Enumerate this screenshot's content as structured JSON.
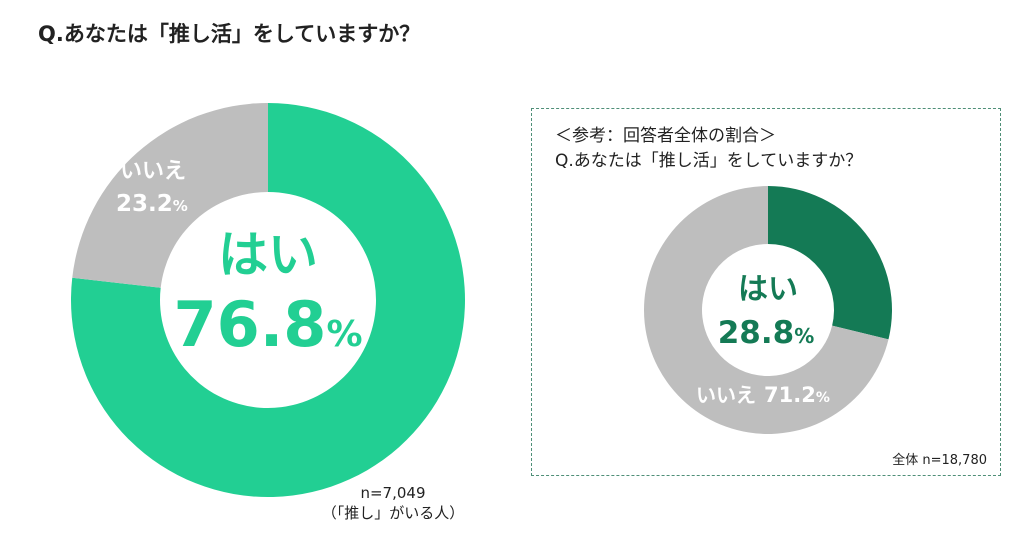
{
  "title": "Q.あなたは「推し活」をしていますか？",
  "chart_data": [
    {
      "type": "pie",
      "categories": [
        "はい",
        "いいえ"
      ],
      "values": [
        76.8,
        23.2
      ],
      "unit": "%",
      "labels": {
        "yes_label": "はい",
        "yes_value": "76.8",
        "no_label": "いいえ",
        "no_value": "23.2",
        "pct": "%"
      },
      "colors": {
        "yes": "#22cf93",
        "no": "#bebebe"
      },
      "note_line1": "n=7,049",
      "note_line2": "（「推し」がいる人）"
    },
    {
      "type": "pie",
      "categories": [
        "はい",
        "いいえ"
      ],
      "values": [
        28.8,
        71.2
      ],
      "unit": "%",
      "labels": {
        "yes_label": "はい",
        "yes_value": "28.8",
        "no_label": "いいえ",
        "no_value": "71.2",
        "pct": "%"
      },
      "colors": {
        "yes": "#147a55",
        "no": "#bebebe"
      },
      "heading_line1": "＜参考：回答者全体の割合＞",
      "heading_line2": "Q.あなたは「推し活」をしていますか？",
      "note": "全体 n=18,780"
    }
  ]
}
